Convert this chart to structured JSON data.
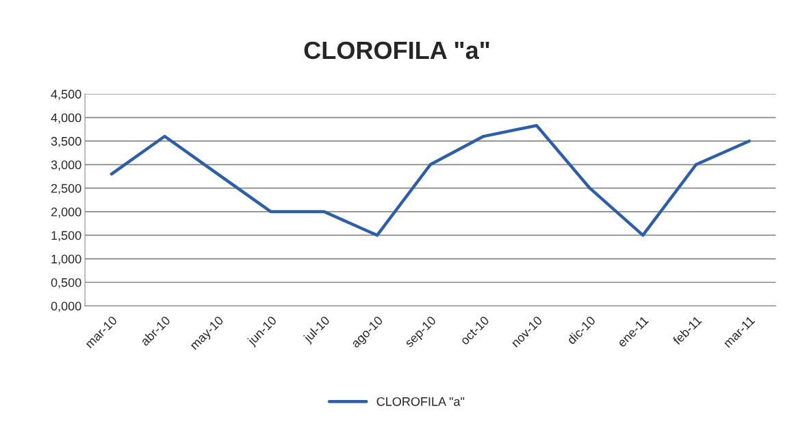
{
  "chart_data": {
    "type": "line",
    "title": "CLOROFILA \"a\"",
    "categories": [
      "mar-10",
      "abr-10",
      "may-10",
      "jun-10",
      "jul-10",
      "ago-10",
      "sep-10",
      "oct-10",
      "nov-10",
      "dic-10",
      "ene-11",
      "feb-11",
      "mar-11"
    ],
    "series": [
      {
        "name": "CLOROFILA \"a\"",
        "color": "#2e5ea6",
        "values": [
          2.8,
          3.6,
          2.8,
          2.0,
          2.0,
          1.5,
          3.0,
          3.6,
          3.83,
          2.5,
          1.5,
          3.0,
          3.5
        ]
      }
    ],
    "ylim": [
      0,
      4.5
    ],
    "yticks": [
      {
        "value": 0,
        "label": "0,000"
      },
      {
        "value": 0.5,
        "label": "0,500"
      },
      {
        "value": 1.0,
        "label": "1,000"
      },
      {
        "value": 1.5,
        "label": "1,500"
      },
      {
        "value": 2.0,
        "label": "2,000"
      },
      {
        "value": 2.5,
        "label": "2,500"
      },
      {
        "value": 3.0,
        "label": "3,000"
      },
      {
        "value": 3.5,
        "label": "3,500"
      },
      {
        "value": 4.0,
        "label": "4,000"
      },
      {
        "value": 4.5,
        "label": "4,500"
      }
    ],
    "grid": "y",
    "legend": "bottom",
    "marker": "none",
    "line_style": "solid"
  }
}
